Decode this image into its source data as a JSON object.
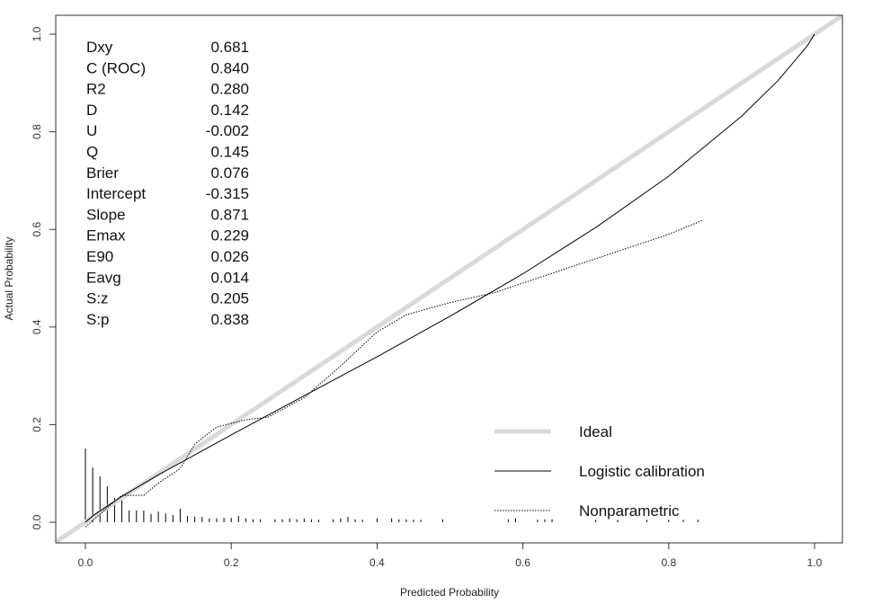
{
  "chart_data": {
    "type": "line",
    "xlabel": "Predicted Probability",
    "ylabel": "Actual Probability",
    "xlim": [
      -0.04,
      1.04
    ],
    "ylim": [
      -0.04,
      1.04
    ],
    "xticks": [
      "0.0",
      "0.2",
      "0.4",
      "0.6",
      "0.8",
      "1.0"
    ],
    "yticks": [
      "0.0",
      "0.2",
      "0.4",
      "0.6",
      "0.8",
      "1.0"
    ],
    "grid": false,
    "legend_placement": "bottom-right",
    "stats": [
      {
        "label": "Dxy",
        "value": "0.681"
      },
      {
        "label": "C (ROC)",
        "value": "0.840"
      },
      {
        "label": "R2",
        "value": "0.280"
      },
      {
        "label": "D",
        "value": "0.142"
      },
      {
        "label": "U",
        "value": "-0.002"
      },
      {
        "label": "Q",
        "value": "0.145"
      },
      {
        "label": "Brier",
        "value": "0.076"
      },
      {
        "label": "Intercept",
        "value": "-0.315"
      },
      {
        "label": "Slope",
        "value": "0.871"
      },
      {
        "label": "Emax",
        "value": "0.229"
      },
      {
        "label": "E90",
        "value": "0.026"
      },
      {
        "label": "Eavg",
        "value": "0.014"
      },
      {
        "label": "S:z",
        "value": "0.205"
      },
      {
        "label": "S:p",
        "value": "0.838"
      }
    ],
    "series": [
      {
        "name": "Ideal",
        "color": "#d9d9d9",
        "style": "thick",
        "x": [
          -0.04,
          1.04
        ],
        "y": [
          -0.04,
          1.04
        ]
      },
      {
        "name": "Logistic calibration",
        "color": "#000000",
        "style": "solid",
        "x": [
          0.0,
          0.01,
          0.05,
          0.1,
          0.2,
          0.3,
          0.4,
          0.5,
          0.6,
          0.7,
          0.8,
          0.9,
          0.95,
          0.99,
          1.0
        ],
        "y": [
          0.0,
          0.013,
          0.053,
          0.097,
          0.179,
          0.259,
          0.339,
          0.422,
          0.509,
          0.604,
          0.709,
          0.832,
          0.905,
          0.976,
          1.0
        ]
      },
      {
        "name": "Nonparametric",
        "color": "#000000",
        "style": "dotted",
        "x": [
          0.0,
          0.03,
          0.05,
          0.08,
          0.1,
          0.13,
          0.15,
          0.18,
          0.22,
          0.25,
          0.3,
          0.35,
          0.4,
          0.44,
          0.5,
          0.56,
          0.6,
          0.7,
          0.8,
          0.847
        ],
        "y": [
          -0.01,
          0.03,
          0.055,
          0.055,
          0.08,
          0.11,
          0.16,
          0.195,
          0.21,
          0.215,
          0.255,
          0.32,
          0.39,
          0.425,
          0.45,
          0.47,
          0.49,
          0.54,
          0.59,
          0.619
        ]
      }
    ],
    "rug_spikes": {
      "x": [
        0.0,
        0.01,
        0.02,
        0.03,
        0.04,
        0.05,
        0.06,
        0.07,
        0.08,
        0.09,
        0.1,
        0.11,
        0.12,
        0.13,
        0.14,
        0.15,
        0.16,
        0.17,
        0.18,
        0.19,
        0.2,
        0.21,
        0.22,
        0.23,
        0.24,
        0.26,
        0.27,
        0.28,
        0.29,
        0.3,
        0.31,
        0.32,
        0.34,
        0.35,
        0.36,
        0.37,
        0.38,
        0.4,
        0.42,
        0.43,
        0.44,
        0.45,
        0.46,
        0.49,
        0.58,
        0.59,
        0.62,
        0.63,
        0.64,
        0.7,
        0.73,
        0.77,
        0.8,
        0.82,
        0.84
      ],
      "height": [
        0.151,
        0.112,
        0.094,
        0.074,
        0.05,
        0.05,
        0.024,
        0.024,
        0.024,
        0.017,
        0.022,
        0.018,
        0.015,
        0.028,
        0.013,
        0.011,
        0.011,
        0.008,
        0.008,
        0.009,
        0.009,
        0.013,
        0.008,
        0.006,
        0.006,
        0.006,
        0.006,
        0.008,
        0.006,
        0.008,
        0.006,
        0.005,
        0.006,
        0.008,
        0.011,
        0.006,
        0.005,
        0.008,
        0.008,
        0.006,
        0.006,
        0.005,
        0.005,
        0.006,
        0.006,
        0.008,
        0.005,
        0.006,
        0.006,
        0.005,
        0.005,
        0.005,
        0.005,
        0.005,
        0.005
      ]
    }
  }
}
